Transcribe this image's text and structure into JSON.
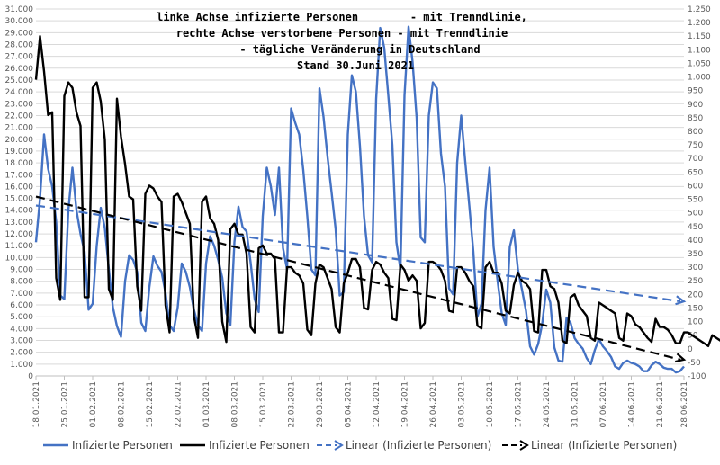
{
  "chart_data": {
    "type": "line",
    "title": [
      "linke Achse infizierte Personen        - mit Trenndlinie,",
      "rechte Achse verstorbene Personen - mit Trenndlinie",
      "- tägliche Veränderung in Deutschland",
      "Stand 30.Juni 2021"
    ],
    "x_labels": [
      "18.01.2021",
      "25.01.2021",
      "01.02.2021",
      "08.02.2021",
      "15.02.2021",
      "22.02.2021",
      "01.03.2021",
      "08.03.2021",
      "15.03.2021",
      "22.03.2021",
      "29.03.2021",
      "05.04.2021",
      "12.04.2021",
      "19.04.2021",
      "26.04.2021",
      "03.05.2021",
      "10.05.2021",
      "17.05.2021",
      "24.05.2021",
      "31.05.2021",
      "07.06.2021",
      "14.06.2021",
      "21.06.2021",
      "28.06.2021"
    ],
    "y_left": {
      "min": 0,
      "max": 31000,
      "step": 1000
    },
    "y_right": {
      "min": -100,
      "max": 1250,
      "step": 50
    },
    "series": [
      {
        "name": "Infizierte Personen",
        "axis": "left",
        "color": "#4472c4",
        "values": [
          11300,
          15000,
          20400,
          17500,
          16000,
          13000,
          6800,
          6500,
          14000,
          17600,
          14000,
          12000,
          10500,
          5600,
          6100,
          11000,
          14200,
          12500,
          9000,
          5800,
          4200,
          3300,
          8000,
          10200,
          9800,
          8800,
          4500,
          3800,
          7500,
          10100,
          9300,
          8800,
          7000,
          4300,
          3800,
          5800,
          9500,
          8800,
          7500,
          5600,
          4300,
          3800,
          9500,
          11800,
          11000,
          9800,
          8300,
          5300,
          4300,
          11300,
          14300,
          12600,
          12200,
          9600,
          6500,
          5400,
          13500,
          17600,
          16000,
          13600,
          17600,
          10800,
          9000,
          22600,
          21400,
          20400,
          17400,
          13500,
          9000,
          8500,
          24300,
          21900,
          18500,
          15500,
          12400,
          6800,
          7100,
          20400,
          25400,
          24000,
          19400,
          13500,
          10200,
          9600,
          23400,
          29400,
          27700,
          23700,
          19500,
          11300,
          9000,
          23700,
          29500,
          26500,
          21800,
          11700,
          11300,
          22000,
          24800,
          24300,
          18800,
          16000,
          7400,
          6900,
          18000,
          22000,
          18100,
          14400,
          10500,
          5000,
          6100,
          14000,
          17600,
          10900,
          8000,
          5300,
          4300,
          10900,
          12300,
          9000,
          7300,
          5500,
          2500,
          1800,
          2700,
          4400,
          7300,
          6200,
          2400,
          1300,
          1200,
          4900,
          4500,
          3200,
          2700,
          2300,
          1500,
          1000,
          2200,
          3100,
          2500,
          2100,
          1600,
          800,
          600,
          1100,
          1300,
          1100,
          1000,
          800,
          400,
          400,
          900,
          1200,
          1000,
          700,
          600,
          600,
          300,
          400,
          800
        ]
      },
      {
        "name": "Infizierte Personen",
        "axis": "right",
        "color": "#000000",
        "values": [
          990,
          1150,
          1020,
          860,
          870,
          260,
          180,
          930,
          980,
          960,
          870,
          820,
          190,
          190,
          960,
          980,
          910,
          770,
          220,
          180,
          920,
          780,
          680,
          560,
          550,
          230,
          140,
          570,
          600,
          590,
          560,
          540,
          160,
          60,
          560,
          570,
          540,
          500,
          460,
          120,
          40,
          540,
          560,
          480,
          460,
          400,
          100,
          25,
          440,
          460,
          420,
          420,
          350,
          80,
          60,
          370,
          380,
          350,
          350,
          330,
          60,
          60,
          300,
          300,
          280,
          270,
          240,
          70,
          50,
          240,
          310,
          300,
          260,
          220,
          80,
          60,
          240,
          280,
          330,
          330,
          300,
          150,
          145,
          290,
          320,
          310,
          280,
          260,
          110,
          105,
          310,
          290,
          250,
          270,
          250,
          75,
          95,
          320,
          320,
          310,
          290,
          250,
          140,
          135,
          300,
          300,
          280,
          250,
          230,
          85,
          75,
          300,
          320,
          280,
          280,
          240,
          140,
          130,
          235,
          280,
          250,
          240,
          220,
          65,
          60,
          290,
          290,
          230,
          220,
          170,
          30,
          20,
          190,
          200,
          160,
          140,
          120,
          40,
          30,
          170,
          160,
          150,
          140,
          130,
          40,
          30,
          130,
          120,
          90,
          80,
          60,
          40,
          25,
          110,
          80,
          80,
          70,
          50,
          20,
          20,
          60,
          60,
          50,
          40,
          30,
          20,
          10,
          50,
          40,
          30,
          20,
          10,
          10,
          5,
          5,
          60,
          50
        ]
      },
      {
        "name": "Linear (Infizierte Personen)",
        "axis": "left",
        "color": "#4472c4",
        "style": "dashed-arrow",
        "values": [
          14400,
          6300
        ]
      },
      {
        "name": "Linear (Infizierte Personen)",
        "axis": "right",
        "color": "#000000",
        "style": "dashed-arrow",
        "values": [
          560,
          -40
        ]
      }
    ],
    "grid": true,
    "legend_position": "bottom"
  }
}
